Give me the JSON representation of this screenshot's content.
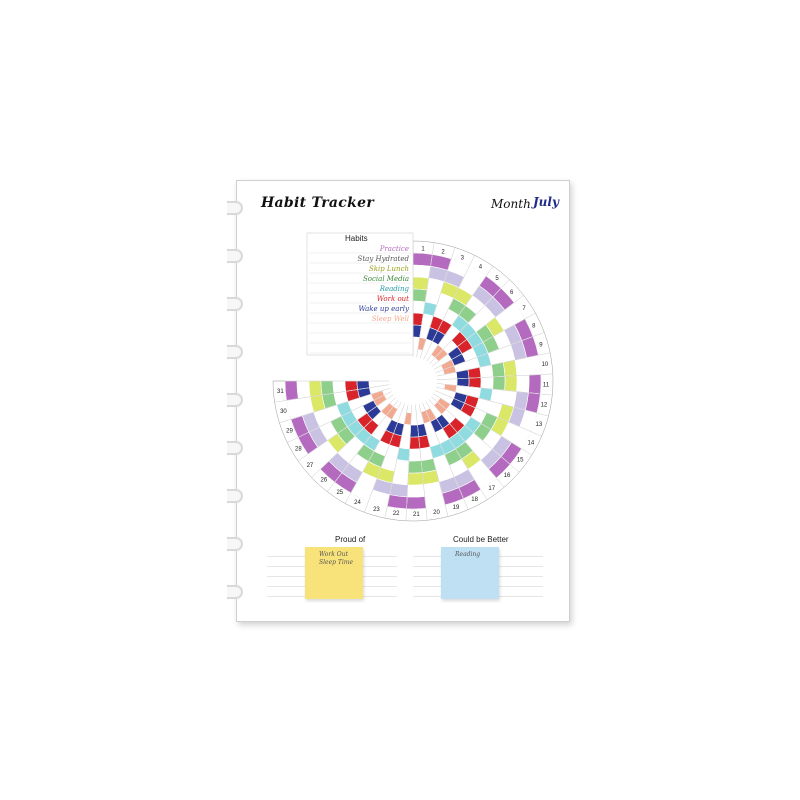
{
  "tracker": {
    "title": "Habit Tracker",
    "month_label": "Month",
    "month_value": "July",
    "habits_header": "Habits",
    "habits": [
      {
        "name": "Practice",
        "color": "#b46bbf"
      },
      {
        "name": "Stay Hydrated",
        "color": "#c9c2e2"
      },
      {
        "name": "Skip Lunch",
        "color": "#dbe766"
      },
      {
        "name": "Social Media",
        "color": "#8fcf8c"
      },
      {
        "name": "Reading",
        "color": "#8fdbe0"
      },
      {
        "name": "Work out",
        "color": "#d8232a"
      },
      {
        "name": "Wake up early",
        "color": "#2a3a96"
      },
      {
        "name": "Sleep Well",
        "color": "#f2a98f"
      }
    ],
    "days": [
      "1",
      "2",
      "3",
      "4",
      "5",
      "6",
      "7",
      "8",
      "9",
      "10",
      "11",
      "12",
      "13",
      "14",
      "15",
      "16",
      "17",
      "18",
      "19",
      "20",
      "21",
      "22",
      "23",
      "24",
      "25",
      "26",
      "27",
      "28",
      "29",
      "30",
      "31"
    ]
  },
  "reflection": {
    "proud_label": "Proud of",
    "better_label": "Could be Better",
    "proud_note": [
      "Work Out",
      "Sleep Time"
    ],
    "better_note": [
      "Reading"
    ],
    "proud_color": "#f8e27a",
    "better_color": "#bfe0f3"
  }
}
